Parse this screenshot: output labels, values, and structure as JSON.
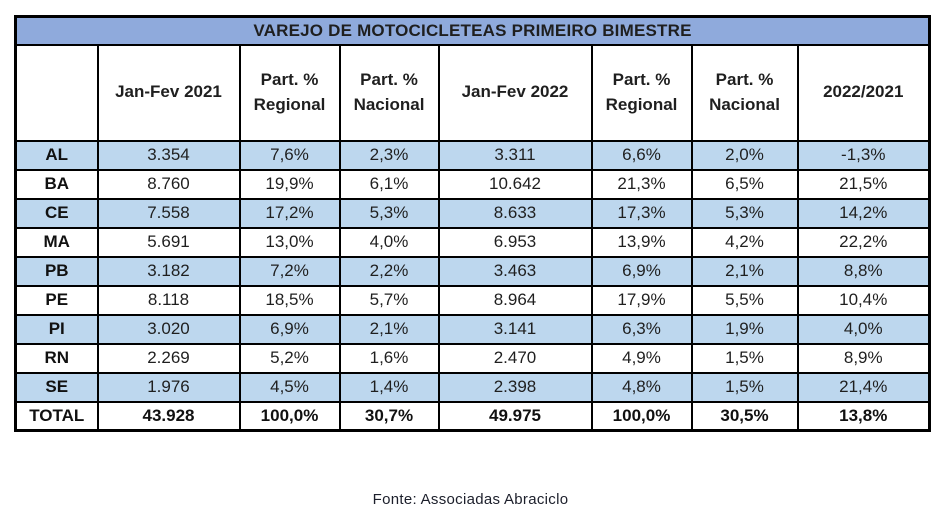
{
  "chart_data": {
    "type": "table",
    "title": "VAREJO DE MOTOCICLETEAS PRIMEIRO BIMESTRE",
    "columns": [
      "",
      "Jan-Fev 2021",
      "Part. %\nRegional",
      "Part. %\nNacional",
      "Jan-Fev 2022",
      "Part. %\nRegional",
      "Part. %\nNacional",
      "2022/2021"
    ],
    "rows": [
      [
        "AL",
        "3.354",
        "7,6%",
        "2,3%",
        "3.311",
        "6,6%",
        "2,0%",
        "-1,3%"
      ],
      [
        "BA",
        "8.760",
        "19,9%",
        "6,1%",
        "10.642",
        "21,3%",
        "6,5%",
        "21,5%"
      ],
      [
        "CE",
        "7.558",
        "17,2%",
        "5,3%",
        "8.633",
        "17,3%",
        "5,3%",
        "14,2%"
      ],
      [
        "MA",
        "5.691",
        "13,0%",
        "4,0%",
        "6.953",
        "13,9%",
        "4,2%",
        "22,2%"
      ],
      [
        "PB",
        "3.182",
        "7,2%",
        "2,2%",
        "3.463",
        "6,9%",
        "2,1%",
        "8,8%"
      ],
      [
        "PE",
        "8.118",
        "18,5%",
        "5,7%",
        "8.964",
        "17,9%",
        "5,5%",
        "10,4%"
      ],
      [
        "PI",
        "3.020",
        "6,9%",
        "2,1%",
        "3.141",
        "6,3%",
        "1,9%",
        "4,0%"
      ],
      [
        "RN",
        "2.269",
        "5,2%",
        "1,6%",
        "2.470",
        "4,9%",
        "1,5%",
        "8,9%"
      ],
      [
        "SE",
        "1.976",
        "4,5%",
        "1,4%",
        "2.398",
        "4,8%",
        "1,5%",
        "21,4%"
      ],
      [
        "TOTAL",
        "43.928",
        "100,0%",
        "30,7%",
        "49.975",
        "100,0%",
        "30,5%",
        "13,8%"
      ]
    ],
    "source": "Fonte: Associadas Abraciclo",
    "layout": {
      "legend": "none",
      "grid": "full black borders",
      "striped_rows": "alternating light blue starting at first data row"
    }
  },
  "colors": {
    "title_bg": "#8FAADC",
    "stripe_bg": "#BDD7EE",
    "row_bg": "#FFFFFF",
    "border": "#000000",
    "text": "#1F1F1F"
  }
}
